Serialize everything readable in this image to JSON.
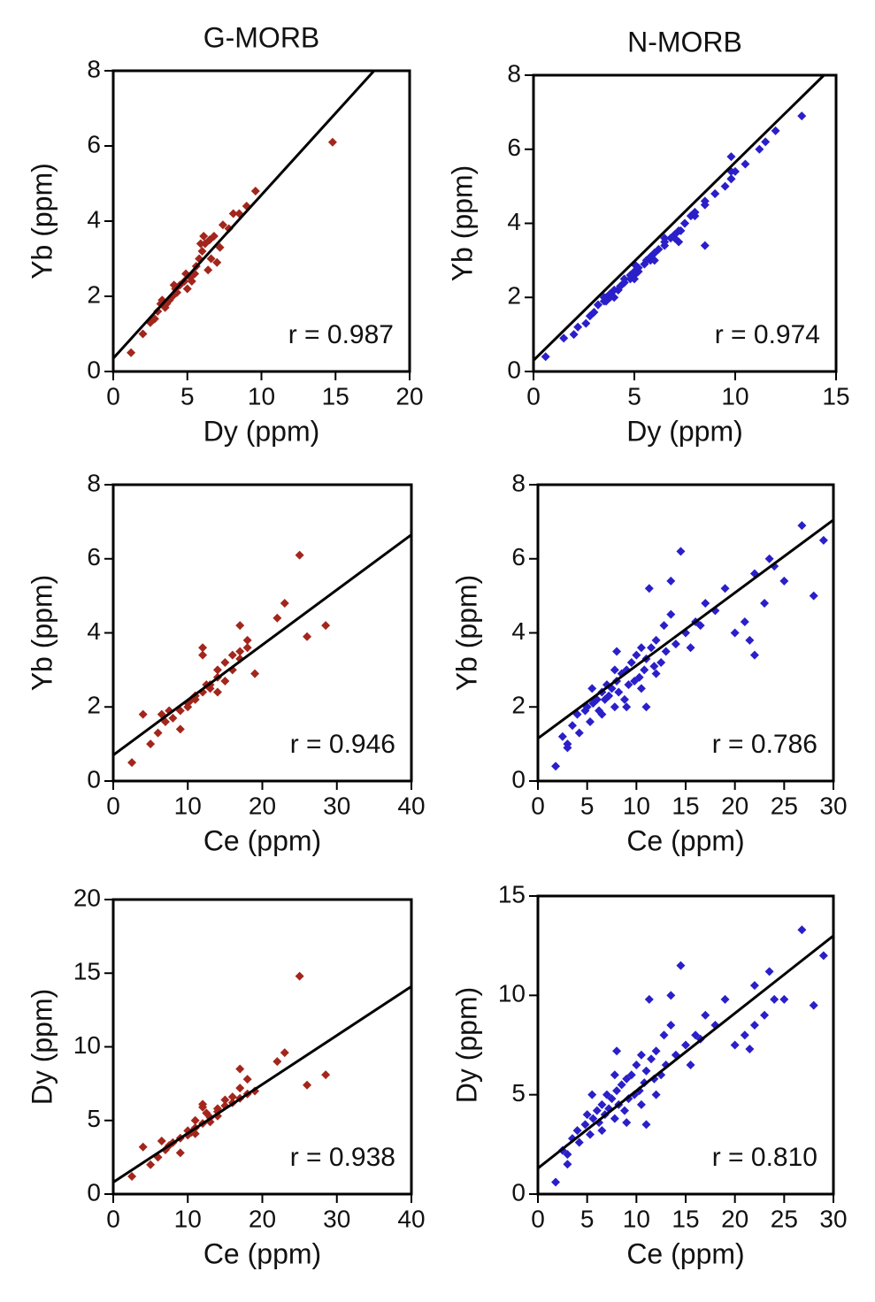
{
  "chart_data": [
    {
      "type": "scatter",
      "title": "G-MORB",
      "x_label": "Dy (ppm)",
      "y_label": "Yb (ppm)",
      "annotation": "r = 0.987",
      "color": "#a3261c",
      "xlim": [
        0,
        20
      ],
      "ylim": [
        0,
        8
      ],
      "xticks": [
        0,
        5,
        10,
        15,
        20
      ],
      "yticks": [
        0,
        2,
        4,
        6,
        8
      ],
      "x": [
        1.2,
        2,
        2.5,
        3,
        3.2,
        3.5,
        3.8,
        4,
        4.2,
        4.5,
        4.8,
        5,
        5.2,
        5.5,
        5.8,
        6,
        6.2,
        6.5,
        6.8,
        7,
        7.4,
        8.1,
        8.5,
        9,
        9.6,
        14.8,
        3.3,
        4.3,
        5.6,
        6.1,
        6.6,
        7.2,
        4.9,
        5.3,
        3.6,
        6.4,
        5.9,
        7.8,
        4.1,
        2.8
      ],
      "y": [
        0.5,
        1.0,
        1.3,
        1.6,
        1.8,
        1.7,
        1.9,
        2.0,
        2.2,
        2.3,
        2.4,
        2.2,
        2.5,
        2.6,
        3.0,
        3.2,
        3.4,
        3.5,
        3.6,
        2.9,
        3.9,
        4.2,
        4.2,
        4.4,
        4.8,
        6.1,
        1.9,
        2.1,
        2.8,
        3.6,
        3.0,
        3.3,
        2.6,
        2.4,
        1.8,
        2.7,
        3.4,
        3.8,
        2.3,
        1.4
      ],
      "fit": {
        "x": [
          0,
          17.6
        ],
        "y": [
          0.35,
          8
        ]
      }
    },
    {
      "type": "scatter",
      "title": "N-MORB",
      "x_label": "Dy (ppm)",
      "y_label": "Yb (ppm)",
      "annotation": "r = 0.974",
      "color": "#2a1fc8",
      "xlim": [
        0,
        15
      ],
      "ylim": [
        0,
        8
      ],
      "xticks": [
        0,
        5,
        10,
        15
      ],
      "yticks": [
        0,
        2,
        4,
        6,
        8
      ],
      "x": [
        0.6,
        2.2,
        2.0,
        2.8,
        3.2,
        2.6,
        3.5,
        4.0,
        3.0,
        3.8,
        4.2,
        3.6,
        4.5,
        4.0,
        5.0,
        4.3,
        4.8,
        3.8,
        5.2,
        4.5,
        5.5,
        4.2,
        5.8,
        4.8,
        6.0,
        5.0,
        6.5,
        5.2,
        7.0,
        5.6,
        6.2,
        9.8,
        6.8,
        5.8,
        7.2,
        6.0,
        8.0,
        6.5,
        10.0,
        7.0,
        11.5,
        7.5,
        6.5,
        8.0,
        7.8,
        9.0,
        8.5,
        9.8,
        7.5,
        8.0,
        7.3,
        10.5,
        9.0,
        11.2,
        9.8,
        9.8,
        13.3,
        9.5,
        12.0,
        8.5,
        3.2,
        6.0,
        3.6,
        4.5,
        5.0,
        7.2,
        5.0,
        3.5,
        8.5,
        1.5
      ],
      "y": [
        0.4,
        1.2,
        1.0,
        1.5,
        1.8,
        1.3,
        1.9,
        2.0,
        1.6,
        2.1,
        2.2,
        1.9,
        2.4,
        2.2,
        2.6,
        2.3,
        2.5,
        2.0,
        2.7,
        2.4,
        2.9,
        2.2,
        3.0,
        2.6,
        3.2,
        2.7,
        3.4,
        2.8,
        3.6,
        3.0,
        3.3,
        5.2,
        3.6,
        3.1,
        3.8,
        3.2,
        4.2,
        3.5,
        5.4,
        3.7,
        6.2,
        4.0,
        3.6,
        4.3,
        4.2,
        4.8,
        4.6,
        5.2,
        4.0,
        4.3,
        3.8,
        5.6,
        4.8,
        6.0,
        5.8,
        5.4,
        6.9,
        5.0,
        6.5,
        3.4,
        1.8,
        3.0,
        2.0,
        2.5,
        2.9,
        3.5,
        2.5,
        2.0,
        4.5,
        0.9
      ],
      "fit": {
        "x": [
          0,
          14.4
        ],
        "y": [
          0.3,
          8
        ]
      }
    },
    {
      "type": "scatter",
      "x_label": "Ce (ppm)",
      "y_label": "Yb (ppm)",
      "annotation": "r = 0.946",
      "color": "#a3261c",
      "xlim": [
        0,
        40
      ],
      "ylim": [
        0,
        8
      ],
      "xticks": [
        0,
        10,
        20,
        30,
        40
      ],
      "yticks": [
        0,
        2,
        4,
        6,
        8
      ],
      "x": [
        2.5,
        5,
        6,
        7,
        4,
        8,
        9,
        10,
        10.5,
        11,
        12,
        11,
        13,
        12.5,
        14,
        15,
        16,
        17,
        18,
        19,
        26,
        28.5,
        17,
        22,
        23,
        25,
        7.5,
        10,
        14,
        12,
        16,
        17,
        13,
        14,
        6.5,
        15,
        12,
        18,
        11,
        9
      ],
      "y": [
        0.5,
        1.0,
        1.3,
        1.6,
        1.8,
        1.7,
        1.9,
        2.0,
        2.2,
        2.3,
        2.4,
        2.2,
        2.5,
        2.6,
        3.0,
        3.2,
        3.4,
        3.5,
        3.6,
        2.9,
        3.9,
        4.2,
        4.2,
        4.4,
        4.8,
        6.1,
        1.9,
        2.1,
        2.8,
        3.6,
        3.0,
        3.3,
        2.6,
        2.4,
        1.8,
        2.7,
        3.4,
        3.8,
        2.3,
        1.4
      ],
      "fit": {
        "x": [
          0,
          40
        ],
        "y": [
          0.7,
          6.65
        ]
      }
    },
    {
      "type": "scatter",
      "x_label": "Ce (ppm)",
      "y_label": "Yb (ppm)",
      "annotation": "r = 0.786",
      "color": "#2a1fc8",
      "xlim": [
        0,
        30
      ],
      "ylim": [
        0,
        8
      ],
      "xticks": [
        0,
        5,
        10,
        15,
        20,
        25,
        30
      ],
      "yticks": [
        0,
        2,
        4,
        6,
        8
      ],
      "x": [
        1.8,
        2.5,
        3.0,
        3.5,
        4.0,
        4.2,
        4.8,
        5.0,
        5.3,
        5.6,
        6.0,
        6.2,
        6.5,
        6.8,
        7.0,
        7.2,
        7.5,
        7.8,
        8.0,
        8.2,
        8.5,
        8.8,
        9.0,
        9.2,
        9.5,
        9.8,
        10.0,
        10.3,
        10.5,
        10.8,
        11.0,
        11.3,
        11.5,
        11.8,
        12.0,
        12.5,
        12.8,
        13.0,
        13.5,
        14.0,
        14.5,
        15.0,
        15.5,
        16.0,
        16.5,
        17.0,
        18.0,
        19.0,
        20.0,
        21.0,
        21.5,
        22.0,
        23.0,
        23.5,
        24.0,
        25.0,
        26.8,
        28.0,
        29.0,
        22.0,
        6.5,
        7.8,
        9.0,
        10.5,
        12.0,
        8.0,
        5.5,
        11.0,
        13.5,
        3.0
      ],
      "y": [
        0.4,
        1.2,
        1.0,
        1.5,
        1.8,
        1.3,
        1.9,
        2.0,
        1.6,
        2.1,
        2.2,
        1.9,
        2.4,
        2.2,
        2.6,
        2.3,
        2.5,
        2.0,
        2.7,
        2.4,
        2.9,
        2.2,
        3.0,
        2.6,
        3.2,
        2.7,
        3.4,
        2.8,
        3.6,
        3.0,
        3.3,
        5.2,
        3.6,
        3.1,
        3.8,
        3.2,
        4.2,
        3.5,
        5.4,
        3.7,
        6.2,
        4.0,
        3.6,
        4.3,
        4.2,
        4.8,
        4.6,
        5.2,
        4.0,
        4.3,
        3.8,
        5.6,
        4.8,
        6.0,
        5.8,
        5.4,
        6.9,
        5.0,
        6.5,
        3.4,
        1.8,
        3.0,
        2.0,
        2.5,
        2.9,
        3.5,
        2.5,
        2.0,
        4.5,
        0.9
      ],
      "fit": {
        "x": [
          0,
          30
        ],
        "y": [
          1.15,
          7.05
        ]
      }
    },
    {
      "type": "scatter",
      "x_label": "Ce (ppm)",
      "y_label": "Dy (ppm)",
      "annotation": "r = 0.938",
      "color": "#a3261c",
      "xlim": [
        0,
        40
      ],
      "ylim": [
        0,
        20
      ],
      "xticks": [
        0,
        10,
        20,
        30,
        40
      ],
      "yticks": [
        0,
        5,
        10,
        15,
        20
      ],
      "x": [
        2.5,
        5,
        6,
        7,
        4,
        8,
        9,
        10,
        10.5,
        11,
        12,
        11,
        13,
        12.5,
        14,
        15,
        16,
        17,
        18,
        19,
        26,
        28.5,
        17,
        22,
        23,
        25,
        7.5,
        10,
        14,
        12,
        16,
        17,
        13,
        14,
        6.5,
        15,
        12,
        18,
        11,
        9
      ],
      "y": [
        1.2,
        2,
        2.5,
        3,
        3.2,
        3.5,
        3.8,
        4,
        4.2,
        4.5,
        4.8,
        5,
        5.2,
        5.5,
        5.8,
        6,
        6.2,
        6.5,
        6.8,
        7,
        7.4,
        8.1,
        8.5,
        9,
        9.6,
        14.8,
        3.3,
        4.3,
        5.6,
        6.1,
        6.6,
        7.2,
        4.9,
        5.3,
        3.6,
        6.4,
        5.9,
        7.8,
        4.1,
        2.8
      ],
      "fit": {
        "x": [
          0,
          40
        ],
        "y": [
          0.8,
          14.1
        ]
      }
    },
    {
      "type": "scatter",
      "x_label": "Ce (ppm)",
      "y_label": "Dy (ppm)",
      "annotation": "r = 0.810",
      "color": "#2a1fc8",
      "xlim": [
        0,
        30
      ],
      "ylim": [
        0,
        15
      ],
      "xticks": [
        0,
        5,
        10,
        15,
        20,
        25,
        30
      ],
      "yticks": [
        0,
        5,
        10,
        15
      ],
      "x": [
        1.8,
        2.5,
        3.0,
        3.5,
        4.0,
        4.2,
        4.8,
        5.0,
        5.3,
        5.6,
        6.0,
        6.2,
        6.5,
        6.8,
        7.0,
        7.2,
        7.5,
        7.8,
        8.0,
        8.2,
        8.5,
        8.8,
        9.0,
        9.2,
        9.5,
        9.8,
        10.0,
        10.3,
        10.5,
        10.8,
        11.0,
        11.3,
        11.5,
        11.8,
        12.0,
        12.5,
        12.8,
        13.0,
        13.5,
        14.0,
        14.5,
        15.0,
        15.5,
        16.0,
        16.5,
        17.0,
        18.0,
        19.0,
        20.0,
        21.0,
        21.5,
        22.0,
        23.0,
        23.5,
        24.0,
        25.0,
        26.8,
        28.0,
        29.0,
        22.0,
        6.5,
        7.8,
        9.0,
        10.5,
        12.0,
        8.0,
        5.5,
        11.0,
        13.5,
        3.0
      ],
      "y": [
        0.6,
        2.2,
        2.0,
        2.8,
        3.2,
        2.6,
        3.5,
        4.0,
        3.0,
        3.8,
        4.2,
        3.6,
        4.5,
        4.0,
        5.0,
        4.3,
        4.8,
        3.8,
        5.2,
        4.5,
        5.5,
        4.2,
        5.8,
        4.8,
        6.0,
        5.0,
        6.5,
        5.2,
        7.0,
        5.6,
        6.2,
        9.8,
        6.8,
        5.8,
        7.2,
        6.0,
        8.0,
        6.5,
        10.0,
        7.0,
        11.5,
        7.5,
        6.5,
        8.0,
        7.8,
        9.0,
        8.5,
        9.8,
        7.5,
        8.0,
        7.3,
        10.5,
        9.0,
        11.2,
        9.8,
        9.8,
        13.3,
        9.5,
        12.0,
        8.5,
        3.2,
        6.0,
        3.6,
        4.5,
        5.0,
        7.2,
        5.0,
        3.5,
        8.5,
        1.5
      ],
      "fit": {
        "x": [
          0,
          30
        ],
        "y": [
          1.3,
          13
        ]
      }
    }
  ]
}
